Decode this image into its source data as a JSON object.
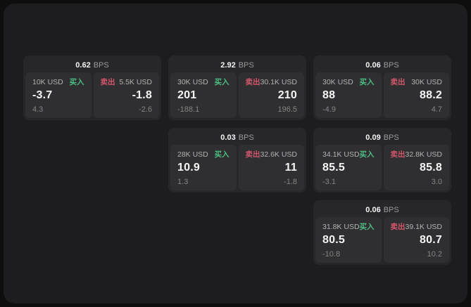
{
  "colors": {
    "buy_accent": "#4dbd84",
    "sell_accent": "#d2566c",
    "page_bg": "#0e0e0e",
    "surface_bg": "#1d1d1f",
    "card_bg": "#27272a",
    "panel_bg": "#2f2f31"
  },
  "labels": {
    "buy": "买入",
    "sell": "卖出",
    "bps_unit": "BPS"
  },
  "cards": [
    {
      "bps": "0.62",
      "buy": {
        "size": "10K USD",
        "value": "-3.7",
        "delta": "4.3"
      },
      "sell": {
        "size": "5.5K USD",
        "value": "-1.8",
        "delta": "-2.6"
      }
    },
    {
      "bps": "2.92",
      "buy": {
        "size": "30K USD",
        "value": "201",
        "delta": "-188.1"
      },
      "sell": {
        "size": "30.1K USD",
        "value": "210",
        "delta": "196.5"
      }
    },
    {
      "bps": "0.06",
      "buy": {
        "size": "30K USD",
        "value": "88",
        "delta": "-4.9"
      },
      "sell": {
        "size": "30K USD",
        "value": "88.2",
        "delta": "4.7"
      }
    },
    {
      "bps": "0.03",
      "buy": {
        "size": "28K USD",
        "value": "10.9",
        "delta": "1.3"
      },
      "sell": {
        "size": "32.6K USD",
        "value": "11",
        "delta": "-1.8"
      }
    },
    {
      "bps": "0.09",
      "buy": {
        "size": "34.1K USD",
        "value": "85.5",
        "delta": "-3.1"
      },
      "sell": {
        "size": "32.8K USD",
        "value": "85.8",
        "delta": "3.0"
      }
    },
    {
      "bps": "0.06",
      "buy": {
        "size": "31.8K USD",
        "value": "80.5",
        "delta": "-10.8"
      },
      "sell": {
        "size": "39.1K USD",
        "value": "80.7",
        "delta": "10.2"
      }
    }
  ]
}
